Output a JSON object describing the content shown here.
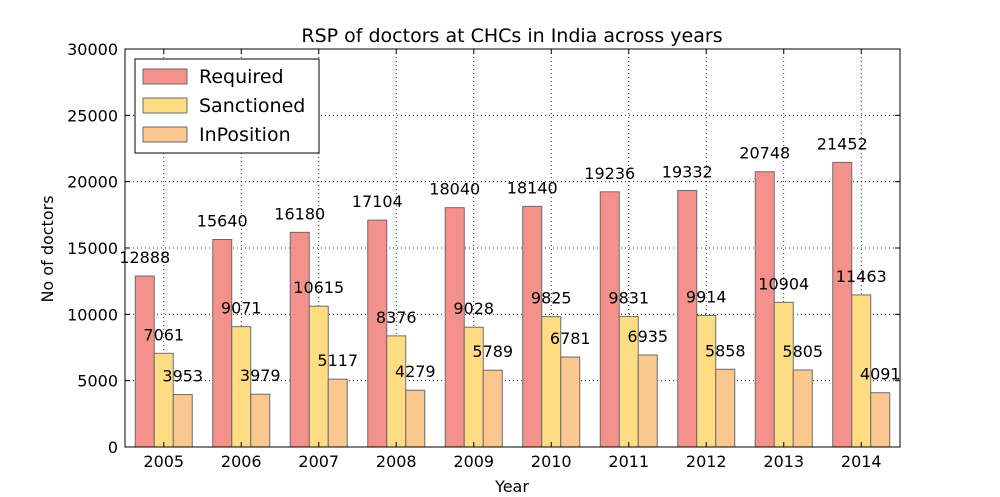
{
  "chart_data": {
    "type": "bar",
    "title": "RSP of doctors at CHCs in India across years",
    "xlabel": "Year",
    "ylabel": "No of doctors",
    "ylim": [
      0,
      30000
    ],
    "yticks": [
      0,
      5000,
      10000,
      15000,
      20000,
      25000,
      30000
    ],
    "grid": true,
    "legend_position": "top-left",
    "categories": [
      "2005",
      "2006",
      "2007",
      "2008",
      "2009",
      "2010",
      "2011",
      "2012",
      "2013",
      "2014"
    ],
    "series": [
      {
        "name": "Required",
        "color": "#f4918b",
        "values": [
          12888,
          15640,
          16180,
          17104,
          18040,
          18140,
          19236,
          19332,
          20748,
          21452
        ]
      },
      {
        "name": "Sanctioned",
        "color": "#fddc84",
        "values": [
          7061,
          9071,
          10615,
          8376,
          9028,
          9825,
          9831,
          9914,
          10904,
          11463
        ]
      },
      {
        "name": "InPosition",
        "color": "#fac78f",
        "values": [
          3953,
          3979,
          5117,
          4279,
          5789,
          6781,
          6935,
          5858,
          5805,
          4091
        ]
      }
    ]
  }
}
